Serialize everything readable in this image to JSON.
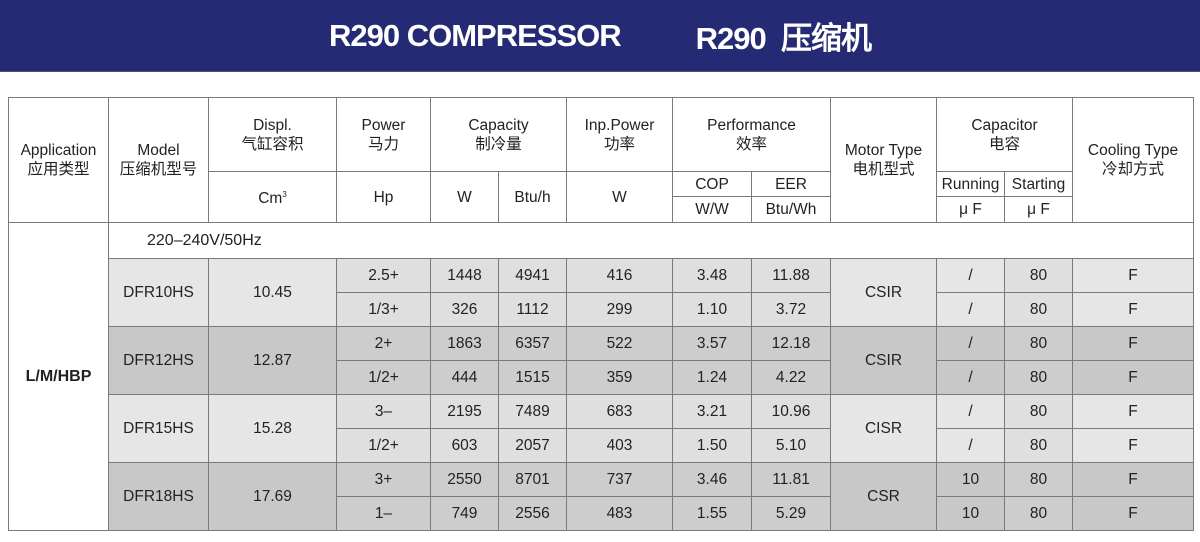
{
  "banner": {
    "title_en": "R290 COMPRESSOR",
    "title_cn": "R290  压缩机",
    "background": "#252a74"
  },
  "header": {
    "application": {
      "en": "Application",
      "cn": "应用类型"
    },
    "model": {
      "en": "Model",
      "cn": "压缩机型号"
    },
    "displ": {
      "en": "Displ.",
      "cn": "气缸容积",
      "unit": "Cm",
      "unit_sup": "3"
    },
    "power": {
      "en": "Power",
      "cn": "马力",
      "unit": "Hp"
    },
    "capacity": {
      "en": "Capacity",
      "cn": "制冷量",
      "unit_w": "W",
      "unit_btu": "Btu/h"
    },
    "inp_power": {
      "en": "Inp.Power",
      "cn": "功率",
      "unit": "W"
    },
    "performance": {
      "en": "Performance",
      "cn": "效率",
      "cop": "COP",
      "eer": "EER",
      "cop_unit": "W/W",
      "eer_unit": "Btu/Wh"
    },
    "motor": {
      "en": "Motor Type",
      "cn": "电机型式"
    },
    "capacitor": {
      "en": "Capacitor",
      "cn": "电容",
      "running": "Running",
      "starting": "Starting",
      "running_unit": "μ F",
      "starting_unit": "μ F"
    },
    "cooling": {
      "en": "Cooling Type",
      "cn": "冷却方式"
    }
  },
  "application": "L/M/HBP",
  "voltage": "220–240V/50Hz",
  "models": [
    {
      "model": "DFR10HS",
      "displ": "10.45",
      "motor": "CSIR",
      "rows": [
        {
          "hp": "2.5+",
          "w": "1448",
          "btu": "4941",
          "inp": "416",
          "cop": "3.48",
          "eer": "11.88",
          "run": "/",
          "start": "80",
          "cool": "F"
        },
        {
          "hp": "1/3+",
          "w": "326",
          "btu": "1112",
          "inp": "299",
          "cop": "1.10",
          "eer": "3.72",
          "run": "/",
          "start": "80",
          "cool": "F"
        }
      ]
    },
    {
      "model": "DFR12HS",
      "displ": "12.87",
      "motor": "CSIR",
      "rows": [
        {
          "hp": "2+",
          "w": "1863",
          "btu": "6357",
          "inp": "522",
          "cop": "3.57",
          "eer": "12.18",
          "run": "/",
          "start": "80",
          "cool": "F"
        },
        {
          "hp": "1/2+",
          "w": "444",
          "btu": "1515",
          "inp": "359",
          "cop": "1.24",
          "eer": "4.22",
          "run": "/",
          "start": "80",
          "cool": "F"
        }
      ]
    },
    {
      "model": "DFR15HS",
      "displ": "15.28",
      "motor": "CISR",
      "rows": [
        {
          "hp": "3–",
          "w": "2195",
          "btu": "7489",
          "inp": "683",
          "cop": "3.21",
          "eer": "10.96",
          "run": "/",
          "start": "80",
          "cool": "F"
        },
        {
          "hp": "1/2+",
          "w": "603",
          "btu": "2057",
          "inp": "403",
          "cop": "1.50",
          "eer": "5.10",
          "run": "/",
          "start": "80",
          "cool": "F"
        }
      ]
    },
    {
      "model": "DFR18HS",
      "displ": "17.69",
      "motor": "CSR",
      "rows": [
        {
          "hp": "3+",
          "w": "2550",
          "btu": "8701",
          "inp": "737",
          "cop": "3.46",
          "eer": "11.81",
          "run": "10",
          "start": "80",
          "cool": "F"
        },
        {
          "hp": "1–",
          "w": "749",
          "btu": "2556",
          "inp": "483",
          "cop": "1.55",
          "eer": "5.29",
          "run": "10",
          "start": "80",
          "cool": "F"
        }
      ]
    }
  ]
}
